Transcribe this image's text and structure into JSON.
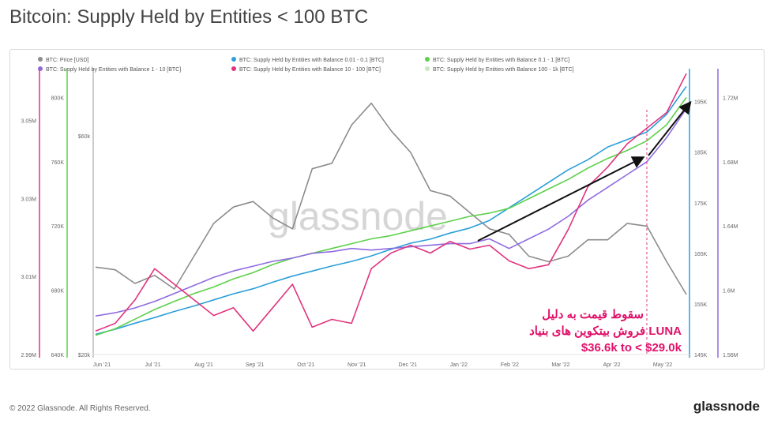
{
  "header": {
    "title": "Bitcoin: Supply Held by Entities < 100 BTC"
  },
  "footer": {
    "copyright": "© 2022 Glassnode. All Rights Reserved.",
    "logo": "glassnode"
  },
  "watermark": "glassnode",
  "annotation": {
    "line1": "سقوط قیمت به دلیل",
    "line2": "فروش بیتکوین های بنیاد LUNA",
    "line3": "$36.6k to < $29.0k"
  },
  "chart_data": {
    "type": "line",
    "title": "Bitcoin: Supply Held by Entities < 100 BTC",
    "x_ticks": [
      "Jun '21",
      "Jul '21",
      "Aug '21",
      "Sep '21",
      "Oct '21",
      "Nov '21",
      "Dec '21",
      "Jan '22",
      "Feb '22",
      "Mar '22",
      "Apr '22",
      "May '22"
    ],
    "axes": {
      "axis_1_10": {
        "ticks": [
          "2.99M",
          "3.01M",
          "3.03M",
          "3.05M"
        ],
        "range": [
          2.99,
          3.06
        ],
        "color": "#e0357e"
      },
      "axis_0_1_1": {
        "ticks": [
          "640K",
          "680K",
          "720K",
          "760K",
          "800K"
        ],
        "range": [
          640,
          810
        ],
        "color": "#5dd04a"
      },
      "axis_price": {
        "ticks": [
          "$20k",
          "$60k"
        ],
        "range": [
          20,
          70
        ],
        "color": "#888888"
      },
      "axis_001_01": {
        "ticks": [
          "145K",
          "155K",
          "165K",
          "175K",
          "185K",
          "195K"
        ],
        "range": [
          145,
          199
        ],
        "color": "#2a9fd8"
      },
      "axis_10_100": {
        "ticks": [
          "1.56M",
          "1.6M",
          "1.64M",
          "1.68M",
          "1.72M"
        ],
        "range": [
          1.56,
          1.73
        ],
        "color": "#8f6be0"
      }
    },
    "legend": [
      {
        "name": "BTC: Price [USD]",
        "color": "#8c8c8c"
      },
      {
        "name": "BTC: Supply Held by Entities with Balance 0.01 - 0.1 [BTC]",
        "color": "#2a9fd8"
      },
      {
        "name": "BTC: Supply Held by Entities with Balance 0.1 - 1 [BTC]",
        "color": "#5dd04a"
      },
      {
        "name": "BTC: Supply Held by Entities with Balance 1 - 10 [BTC]",
        "color": "#8f6be0"
      },
      {
        "name": "BTC: Supply Held by Entities with Balance 10 - 100 [BTC]",
        "color": "#e0357e"
      },
      {
        "name": "BTC: Supply Held by Entities with Balance 100 - 1k [BTC]",
        "color": "#c9e8c0"
      }
    ],
    "legend_placement": "top",
    "series": [
      {
        "name": "BTC: Price [USD]",
        "color": "#8c8c8c",
        "values": [
          36.0,
          35.5,
          33.0,
          34.5,
          32.0,
          38.0,
          44.0,
          47.0,
          48.0,
          45.0,
          43.0,
          54.0,
          55.0,
          62.0,
          66.0,
          61.0,
          57.0,
          50.0,
          49.0,
          46.0,
          43.0,
          42.0,
          38.0,
          37.0,
          38.0,
          41.0,
          41.0,
          44.0,
          43.5,
          37.0,
          31.0
        ]
      },
      {
        "name": "BTC: Supply Held by Entities with Balance 0.01 - 0.1 [BTC]",
        "color": "#2a9fd8",
        "values": [
          149.0,
          150.0,
          151.2,
          152.3,
          153.5,
          154.6,
          155.8,
          157.0,
          158.0,
          159.3,
          160.5,
          161.5,
          162.5,
          163.4,
          164.5,
          165.8,
          167.0,
          167.8,
          169.0,
          170.0,
          171.5,
          174.0,
          176.5,
          179.0,
          181.5,
          183.5,
          186.0,
          187.5,
          189.0,
          192.5,
          198.0
        ]
      },
      {
        "name": "BTC: Supply Held by Entities with Balance 0.1 - 1 [BTC]",
        "color": "#5dd04a",
        "values": [
          652.0,
          656.0,
          662.0,
          668.0,
          673.0,
          678.0,
          682.0,
          687.0,
          691.0,
          696.0,
          700.0,
          703.0,
          706.0,
          709.0,
          712.0,
          714.0,
          717.0,
          720.0,
          723.0,
          726.0,
          728.0,
          731.0,
          737.0,
          743.0,
          749.0,
          756.0,
          762.0,
          767.0,
          773.0,
          783.0,
          800.0
        ]
      },
      {
        "name": "BTC: Supply Held by Entities with Balance 1 - 10 [BTC]",
        "color": "#8f6be0",
        "values": [
          1.584,
          1.586,
          1.589,
          1.593,
          1.598,
          1.603,
          1.608,
          1.612,
          1.615,
          1.618,
          1.62,
          1.623,
          1.624,
          1.626,
          1.625,
          1.626,
          1.627,
          1.628,
          1.629,
          1.629,
          1.632,
          1.626,
          1.632,
          1.638,
          1.646,
          1.656,
          1.664,
          1.672,
          1.68,
          1.695,
          1.713
        ]
      },
      {
        "name": "BTC: Supply Held by Entities with Balance 10 - 100 [BTC]",
        "color": "#e0357e",
        "values": [
          2.996,
          2.998,
          3.004,
          3.012,
          3.008,
          3.004,
          3.0,
          3.002,
          2.996,
          3.002,
          3.008,
          2.997,
          2.999,
          2.998,
          3.012,
          3.016,
          3.018,
          3.016,
          3.019,
          3.017,
          3.018,
          3.014,
          3.012,
          3.013,
          3.022,
          3.033,
          3.038,
          3.044,
          3.048,
          3.052,
          3.062
        ]
      }
    ]
  }
}
